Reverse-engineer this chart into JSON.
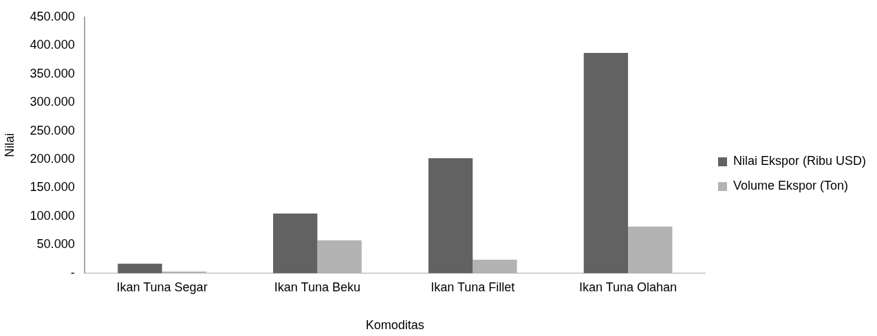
{
  "chart_data": {
    "type": "bar",
    "xlabel": "Komoditas",
    "ylabel": "Nilai",
    "categories": [
      "Ikan Tuna Segar",
      "Ikan Tuna Beku",
      "Ikan Tuna Fillet",
      "Ikan Tuna Olahan"
    ],
    "series": [
      {
        "name": "Nilai Ekspor (Ribu USD)",
        "color": "#626262",
        "values": [
          17000,
          105000,
          202000,
          387000
        ]
      },
      {
        "name": "Volume Ekspor (Ton)",
        "color": "#b3b3b3",
        "values": [
          3000,
          58000,
          24000,
          82000
        ]
      }
    ],
    "ylim": [
      0,
      450000
    ],
    "yticks": [
      {
        "value": 0,
        "label": "-"
      },
      {
        "value": 50000,
        "label": "50.000"
      },
      {
        "value": 100000,
        "label": "100.000"
      },
      {
        "value": 150000,
        "label": "150.000"
      },
      {
        "value": 200000,
        "label": "200.000"
      },
      {
        "value": 250000,
        "label": "250.000"
      },
      {
        "value": 300000,
        "label": "300.000"
      },
      {
        "value": 350000,
        "label": "350.000"
      },
      {
        "value": 400000,
        "label": "400.000"
      },
      {
        "value": 450000,
        "label": "450.000"
      }
    ],
    "grid": false,
    "legend": "right"
  }
}
